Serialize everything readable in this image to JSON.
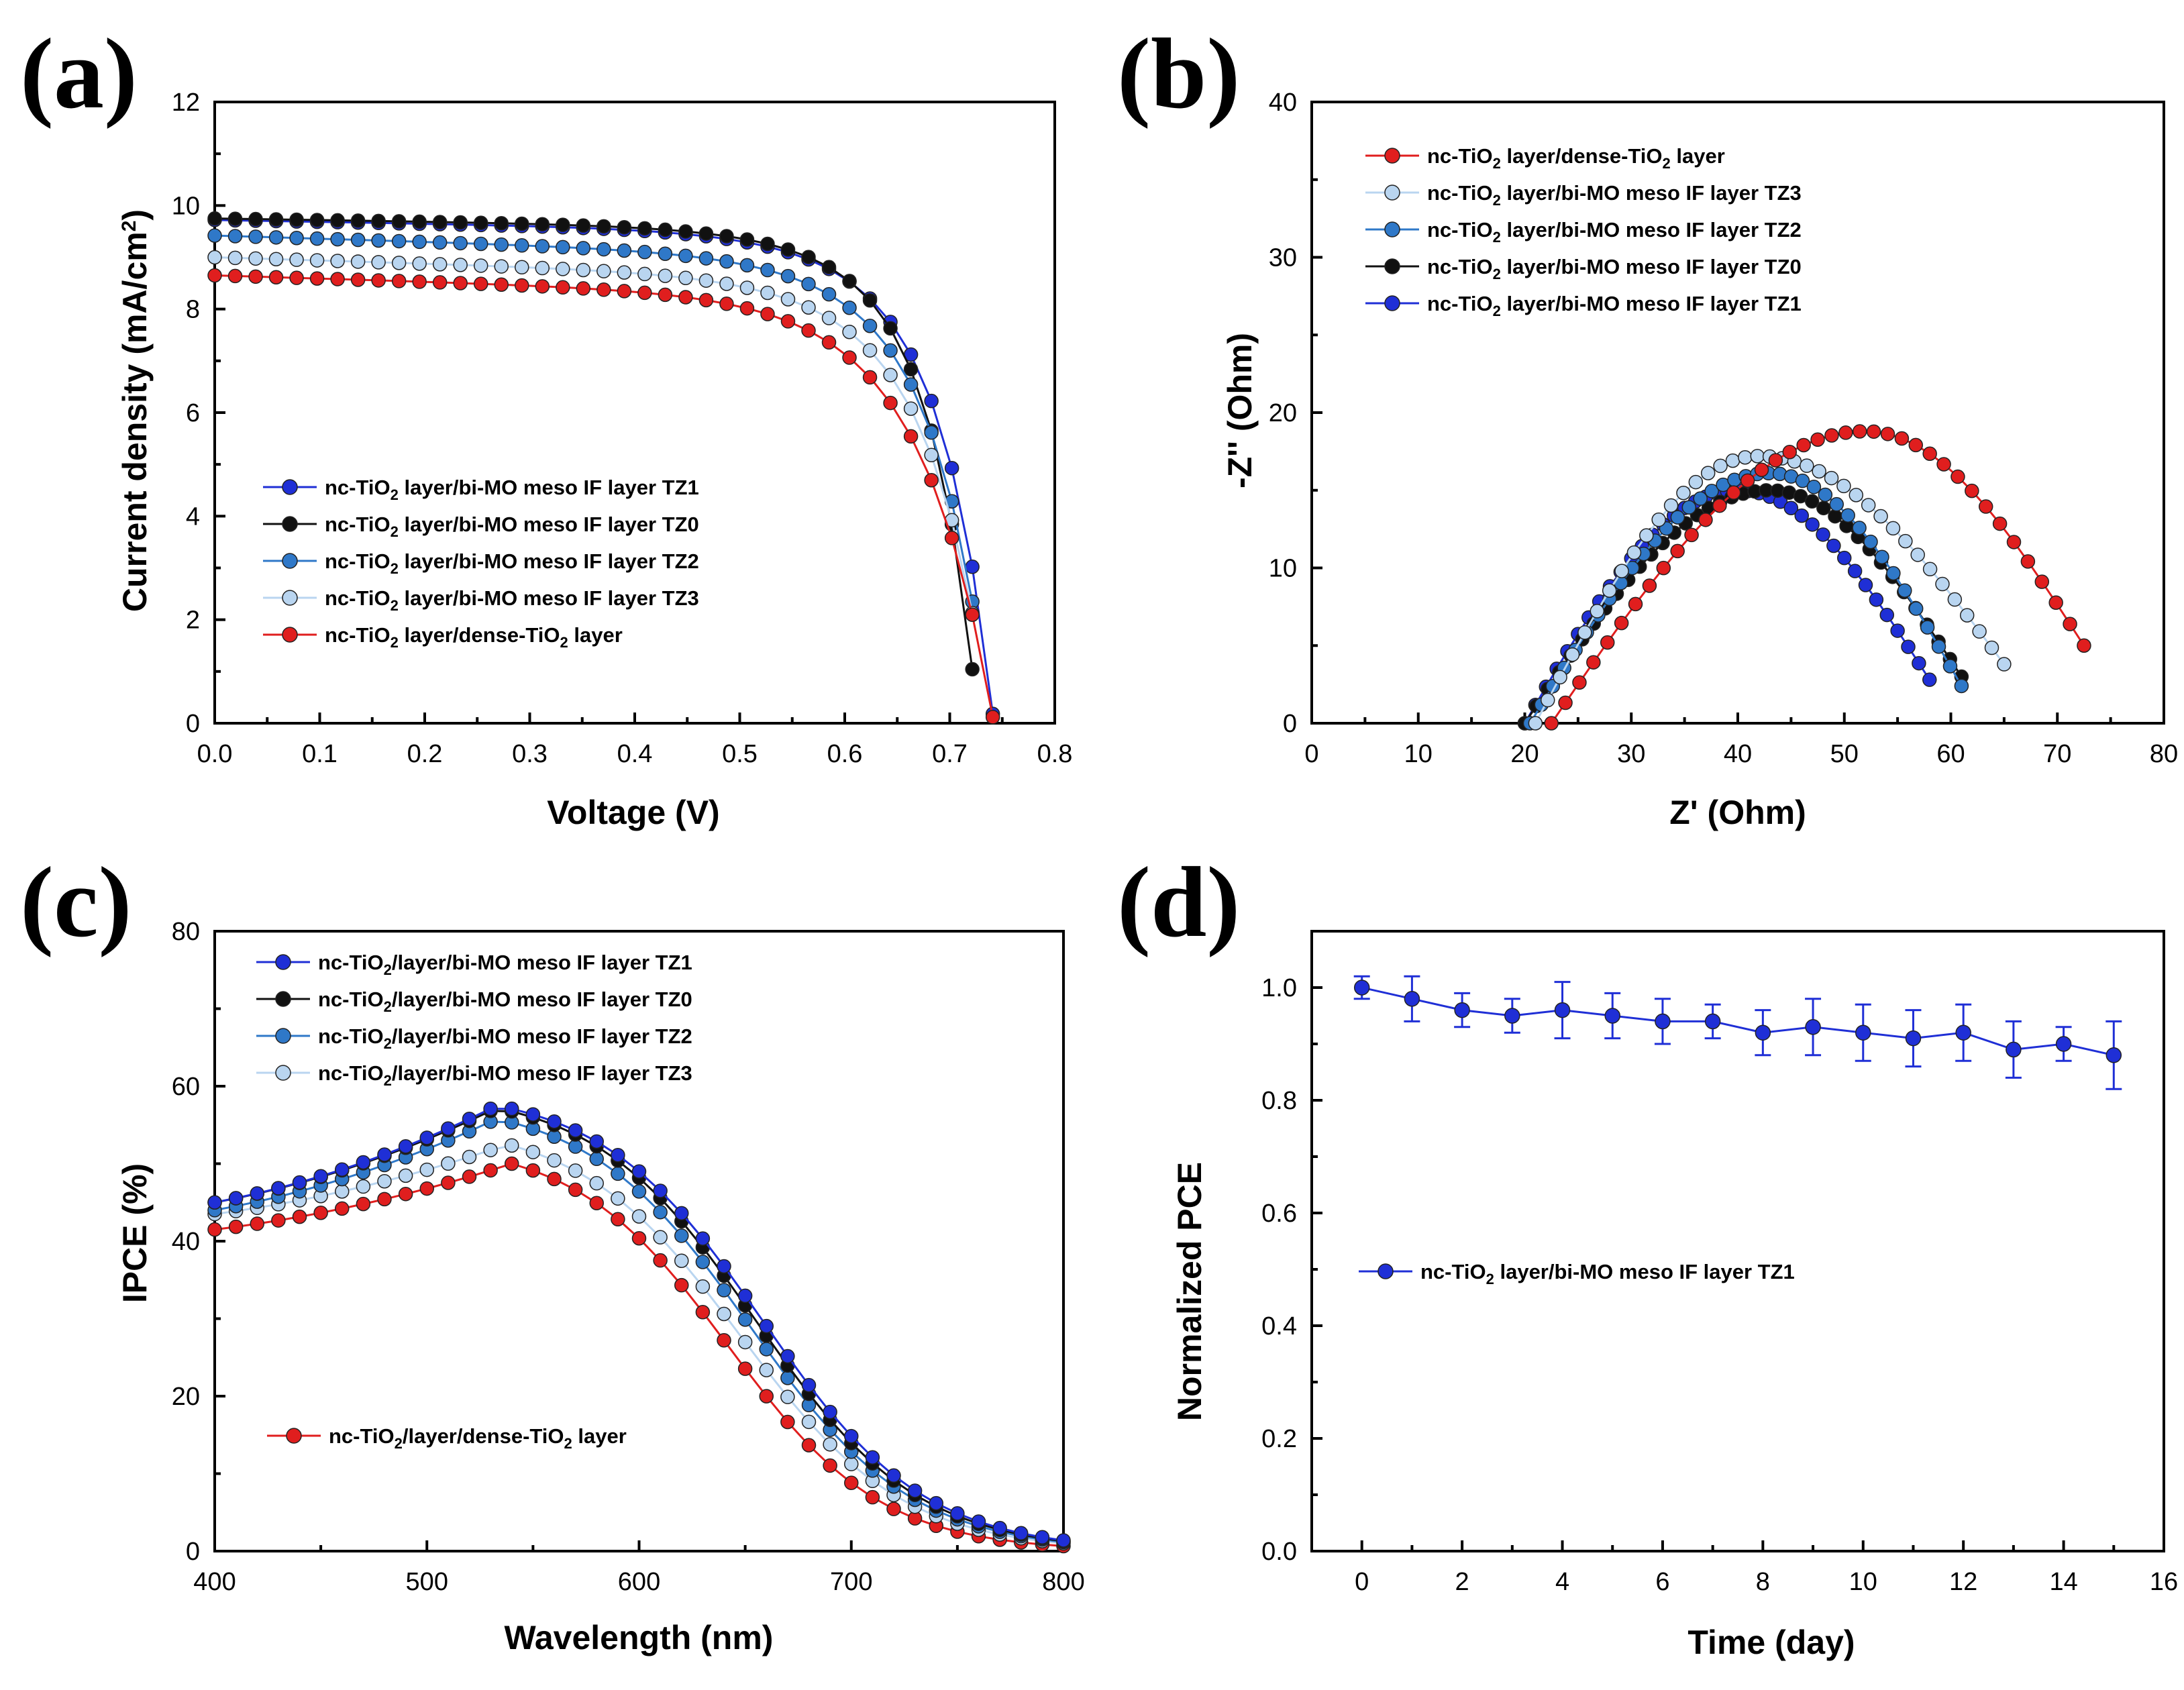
{
  "figure": {
    "panel_labels": [
      "(a)",
      "(b)",
      "(c)",
      "(d)"
    ]
  },
  "colors": {
    "TZ1": "#1f2fd6",
    "TZ0": "#111111",
    "TZ2": "#2f78c8",
    "TZ3": "#b9d5f0",
    "dense": "#e01e1e",
    "stability": "#1f2fd6"
  },
  "chart_data": [
    {
      "panel": "(a)",
      "type": "line",
      "xlabel": "Voltage (V)",
      "ylabel": "Current density (mA/cm²)",
      "xlim": [
        0.0,
        0.8
      ],
      "ylim": [
        0,
        12
      ],
      "xticks": [
        "0.0",
        "0.1",
        "0.2",
        "0.3",
        "0.4",
        "0.5",
        "0.6",
        "0.7",
        "0.8"
      ],
      "yticks": [
        "0",
        "2",
        "4",
        "6",
        "8",
        "10",
        "12"
      ],
      "legend_position": "center-left",
      "series": [
        {
          "key": "TZ1",
          "name": "nc-TiO2 layer/bi-MO meso IF layer TZ1",
          "jsc": 9.72,
          "voc": 0.742,
          "knee": 0.62,
          "decay": 0.016,
          "slope": 0.35
        },
        {
          "key": "TZ0",
          "name": "nc-TiO2 layer/bi-MO meso IF layer TZ0",
          "jsc": 9.75,
          "voc": 0.727,
          "knee": 0.6,
          "decay": 0.016,
          "slope": 0.3
        },
        {
          "key": "TZ2",
          "name": "nc-TiO2 layer/bi-MO meso IF layer TZ2",
          "jsc": 9.42,
          "voc": 0.738,
          "knee": 0.61,
          "decay": 0.017,
          "slope": 0.6
        },
        {
          "key": "TZ3",
          "name": "nc-TiO2 layer/bi-MO meso IF layer TZ3",
          "jsc": 9.0,
          "voc": 0.738,
          "knee": 0.6,
          "decay": 0.018,
          "slope": 0.6
        },
        {
          "key": "dense",
          "name": "nc-TiO2 layer/dense-TiO2 layer",
          "jsc": 8.65,
          "voc": 0.742,
          "knee": 0.58,
          "decay": 0.021,
          "slope": 0.6
        }
      ]
    },
    {
      "panel": "(b)",
      "type": "scatter",
      "xlabel": "Z' (Ohm)",
      "ylabel": "-Z'' (Ohm)",
      "xlim": [
        0,
        80
      ],
      "ylim": [
        0,
        40
      ],
      "xticks": [
        "0",
        "10",
        "20",
        "30",
        "40",
        "50",
        "60",
        "70",
        "80"
      ],
      "yticks": [
        "0",
        "10",
        "20",
        "30",
        "40"
      ],
      "legend_position": "top-left",
      "series": [
        {
          "key": "dense",
          "name": "nc-TiO2 layer/dense-TiO2 layer",
          "x0": 22.5,
          "x_end": 72.5,
          "peak_x": 52,
          "peak_y": 18.8,
          "y_end": 5.0
        },
        {
          "key": "TZ3",
          "name": "nc-TiO2 layer/bi-MO meso IF layer TZ3",
          "x0": 21.0,
          "x_end": 65.0,
          "peak_x": 42,
          "peak_y": 17.2,
          "y_end": 3.8
        },
        {
          "key": "TZ2",
          "name": "nc-TiO2 layer/bi-MO meso IF layer TZ2",
          "x0": 20.5,
          "x_end": 61.0,
          "peak_x": 43,
          "peak_y": 16.1,
          "y_end": 2.4
        },
        {
          "key": "TZ0",
          "name": "nc-TiO2 layer/bi-MO meso IF layer TZ0",
          "x0": 20.0,
          "x_end": 61.0,
          "peak_x": 43,
          "peak_y": 15.0,
          "y_end": 3.0
        },
        {
          "key": "TZ1",
          "name": "nc-TiO2 layer/bi-MO meso IF layer TZ1",
          "x0": 20.0,
          "x_end": 58.0,
          "peak_x": 40,
          "peak_y": 15.0,
          "y_end": 2.8
        }
      ]
    },
    {
      "panel": "(c)",
      "type": "line",
      "xlabel": "Wavelength (nm)",
      "ylabel": "IPCE (%)",
      "xlim": [
        400,
        800
      ],
      "ylim": [
        0,
        80
      ],
      "xticks": [
        "400",
        "500",
        "600",
        "700",
        "800"
      ],
      "yticks": [
        "0",
        "20",
        "40",
        "60",
        "80"
      ],
      "legend_position": "top-left",
      "series": [
        {
          "key": "TZ1",
          "name": "nc-TiO2/layer/bi-MO meso IF layer TZ1",
          "y400": 45,
          "peak": 57.5,
          "peak_x": 533,
          "halfx": 658,
          "width": 38
        },
        {
          "key": "TZ0",
          "name": "nc-TiO2/layer/bi-MO meso IF layer TZ0",
          "y400": 45,
          "peak": 57.2,
          "peak_x": 533,
          "halfx": 655,
          "width": 38
        },
        {
          "key": "TZ2",
          "name": "nc-TiO2/layer/bi-MO meso IF layer TZ2",
          "y400": 44,
          "peak": 55.8,
          "peak_x": 533,
          "halfx": 652,
          "width": 38
        },
        {
          "key": "TZ3",
          "name": "nc-TiO2/layer/bi-MO meso IF layer TZ3",
          "y400": 43.5,
          "peak": 52.5,
          "peak_x": 538,
          "halfx": 648,
          "width": 38
        },
        {
          "key": "dense",
          "name": "nc-TiO2/layer/dense-TiO2 layer",
          "y400": 41.5,
          "peak": 50,
          "peak_x": 540,
          "halfx": 642,
          "width": 36
        }
      ]
    },
    {
      "panel": "(d)",
      "type": "scatter",
      "xlabel": "Time (day)",
      "ylabel": "Normalized PCE",
      "xlim": [
        -1,
        16
      ],
      "ylim": [
        0.0,
        1.1
      ],
      "xticks": [
        "0",
        "2",
        "4",
        "6",
        "8",
        "10",
        "12",
        "14",
        "16"
      ],
      "yticks": [
        "0.0",
        "0.2",
        "0.4",
        "0.6",
        "0.8",
        "1.0"
      ],
      "legend_position": "center-left",
      "series": [
        {
          "key": "stability",
          "name": "nc-TiO2 layer/bi-MO meso IF layer TZ1",
          "x": [
            0,
            1,
            2,
            3,
            4,
            5,
            6,
            7,
            8,
            9,
            10,
            11,
            12,
            13,
            14,
            15
          ],
          "y": [
            1.0,
            0.98,
            0.96,
            0.95,
            0.96,
            0.95,
            0.94,
            0.94,
            0.92,
            0.93,
            0.92,
            0.91,
            0.92,
            0.89,
            0.9,
            0.88
          ],
          "err": [
            0.02,
            0.04,
            0.03,
            0.03,
            0.05,
            0.04,
            0.04,
            0.03,
            0.04,
            0.05,
            0.05,
            0.05,
            0.05,
            0.05,
            0.03,
            0.06
          ]
        }
      ]
    }
  ]
}
